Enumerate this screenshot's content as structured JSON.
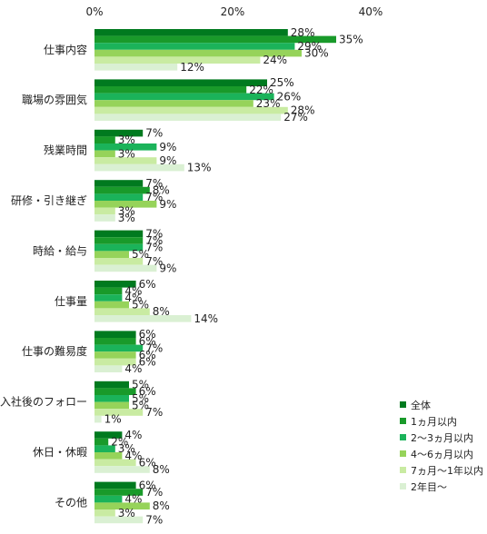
{
  "chart_data": {
    "type": "bar",
    "orientation": "horizontal",
    "xlim": [
      0,
      40
    ],
    "ticks": [
      "0%",
      "20%",
      "40%"
    ],
    "tick_values": [
      0,
      20,
      40
    ],
    "grid": false,
    "legend_position": "bottom-right",
    "categories": [
      "仕事内容",
      "職場の雰囲気",
      "残業時間",
      "研修・引き継ぎ",
      "時給・給与",
      "仕事量",
      "仕事の難易度",
      "入社後のフォロー",
      "休日・休暇",
      "その他"
    ],
    "series": [
      {
        "name": "全体",
        "color": "#007a1f",
        "values": [
          28,
          25,
          7,
          7,
          7,
          6,
          6,
          5,
          4,
          6
        ]
      },
      {
        "name": "1ヵ月以内",
        "color": "#199a2a",
        "values": [
          35,
          22,
          3,
          8,
          7,
          4,
          6,
          6,
          2,
          7
        ]
      },
      {
        "name": "2～3ヵ月以内",
        "color": "#1bb35a",
        "values": [
          29,
          26,
          9,
          7,
          7,
          4,
          7,
          5,
          3,
          4
        ]
      },
      {
        "name": "4～6ヵ月以内",
        "color": "#96d35a",
        "values": [
          30,
          23,
          3,
          9,
          5,
          5,
          6,
          5,
          4,
          8
        ]
      },
      {
        "name": "7ヵ月～1年以内",
        "color": "#c9eba2",
        "values": [
          24,
          28,
          9,
          3,
          7,
          8,
          6,
          7,
          6,
          3
        ]
      },
      {
        "name": "2年目～",
        "color": "#daf0d3",
        "values": [
          12,
          27,
          13,
          3,
          9,
          14,
          4,
          1,
          8,
          7
        ]
      }
    ]
  }
}
